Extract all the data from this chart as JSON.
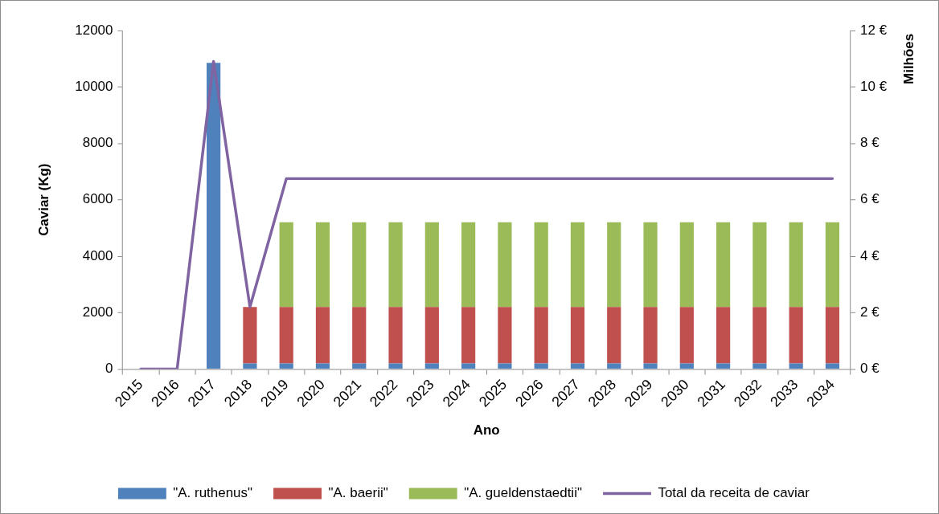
{
  "chart_data": {
    "type": "bar",
    "stacked": true,
    "xlabel": "Ano",
    "ylabel": "Caviar (Kg)",
    "y2label": "Milhões",
    "categories": [
      "2015",
      "2016",
      "2017",
      "2018",
      "2019",
      "2020",
      "2021",
      "2022",
      "2023",
      "2024",
      "2025",
      "2026",
      "2027",
      "2028",
      "2029",
      "2030",
      "2031",
      "2032",
      "2033",
      "2034"
    ],
    "ylim": [
      0,
      12000
    ],
    "yticks": [
      0,
      2000,
      4000,
      6000,
      8000,
      10000,
      12000
    ],
    "y2lim": [
      0,
      12
    ],
    "y2ticks": [
      {
        "value": 0,
        "label": "0 €"
      },
      {
        "value": 2,
        "label": "2 €"
      },
      {
        "value": 4,
        "label": "4 €"
      },
      {
        "value": 6,
        "label": "6 €"
      },
      {
        "value": 8,
        "label": "8 €"
      },
      {
        "value": 10,
        "label": "10 €"
      },
      {
        "value": 12,
        "label": "12 €"
      }
    ],
    "grid": false,
    "legend": "bottom",
    "marker": "none",
    "series": [
      {
        "name": "\"A. ruthenus\"",
        "color": "#4f81bd",
        "values": [
          null,
          null,
          10850,
          200,
          200,
          200,
          200,
          200,
          200,
          200,
          200,
          200,
          200,
          200,
          200,
          200,
          200,
          200,
          200,
          200
        ]
      },
      {
        "name": "\"A. baerii\"",
        "color": "#c0504d",
        "values": [
          null,
          null,
          null,
          2000,
          2000,
          2000,
          2000,
          2000,
          2000,
          2000,
          2000,
          2000,
          2000,
          2000,
          2000,
          2000,
          2000,
          2000,
          2000,
          2000
        ]
      },
      {
        "name": "\"A. gueldenstaedtii\"",
        "color": "#9bbb59",
        "values": [
          null,
          null,
          null,
          null,
          3000,
          3000,
          3000,
          3000,
          3000,
          3000,
          3000,
          3000,
          3000,
          3000,
          3000,
          3000,
          3000,
          3000,
          3000,
          3000
        ]
      },
      {
        "name": "Total da receita de caviar",
        "type": "line",
        "axis": "y2",
        "color": "#8064a2",
        "values": [
          0,
          0,
          10.9,
          2.2,
          6.75,
          6.75,
          6.75,
          6.75,
          6.75,
          6.75,
          6.75,
          6.75,
          6.75,
          6.75,
          6.75,
          6.75,
          6.75,
          6.75,
          6.75,
          6.75
        ]
      }
    ]
  }
}
